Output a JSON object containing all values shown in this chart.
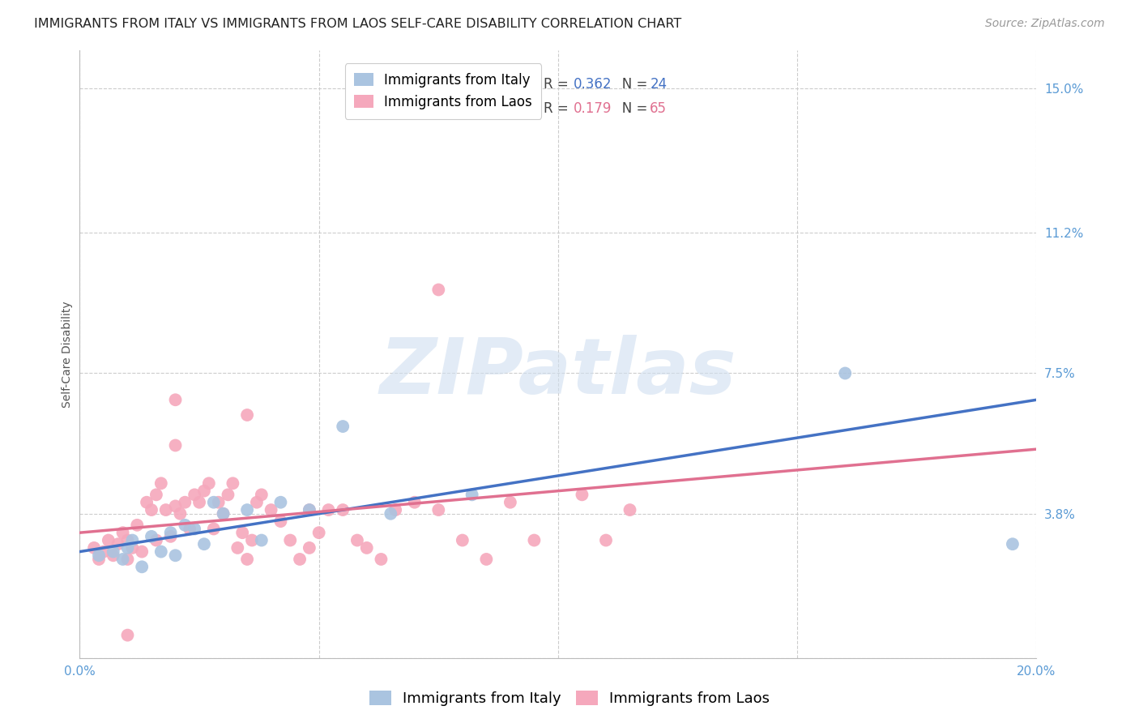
{
  "title": "IMMIGRANTS FROM ITALY VS IMMIGRANTS FROM LAOS SELF-CARE DISABILITY CORRELATION CHART",
  "source": "Source: ZipAtlas.com",
  "ylabel": "Self-Care Disability",
  "xlim": [
    0.0,
    0.2
  ],
  "ylim": [
    0.0,
    0.16
  ],
  "ytick_positions": [
    0.0,
    0.038,
    0.075,
    0.112,
    0.15
  ],
  "ytick_labels": [
    "",
    "3.8%",
    "7.5%",
    "11.2%",
    "15.0%"
  ],
  "xtick_positions": [
    0.0,
    0.05,
    0.1,
    0.15,
    0.2
  ],
  "xtick_labels": [
    "0.0%",
    "",
    "",
    "",
    "20.0%"
  ],
  "grid_color": "#cccccc",
  "background_color": "#ffffff",
  "watermark_text": "ZIPatlas",
  "italy_color": "#aac4e0",
  "italy_line_color": "#4472c4",
  "italy_R": "0.362",
  "italy_N": "24",
  "laos_color": "#f5a8bc",
  "laos_line_color": "#e07090",
  "laos_R": "0.179",
  "laos_N": "65",
  "italy_x": [
    0.004,
    0.007,
    0.009,
    0.01,
    0.011,
    0.013,
    0.015,
    0.017,
    0.019,
    0.02,
    0.022,
    0.024,
    0.026,
    0.028,
    0.03,
    0.035,
    0.038,
    0.042,
    0.048,
    0.055,
    0.065,
    0.082,
    0.16,
    0.195
  ],
  "italy_y": [
    0.027,
    0.028,
    0.026,
    0.029,
    0.031,
    0.024,
    0.032,
    0.028,
    0.033,
    0.027,
    0.035,
    0.034,
    0.03,
    0.041,
    0.038,
    0.039,
    0.031,
    0.041,
    0.039,
    0.061,
    0.038,
    0.043,
    0.075,
    0.03
  ],
  "laos_x": [
    0.003,
    0.004,
    0.005,
    0.006,
    0.007,
    0.008,
    0.009,
    0.01,
    0.01,
    0.011,
    0.012,
    0.013,
    0.014,
    0.015,
    0.016,
    0.016,
    0.017,
    0.018,
    0.019,
    0.02,
    0.02,
    0.021,
    0.022,
    0.023,
    0.024,
    0.025,
    0.026,
    0.027,
    0.028,
    0.029,
    0.03,
    0.031,
    0.032,
    0.033,
    0.034,
    0.035,
    0.036,
    0.037,
    0.038,
    0.04,
    0.042,
    0.044,
    0.046,
    0.048,
    0.05,
    0.052,
    0.055,
    0.058,
    0.06,
    0.063,
    0.066,
    0.07,
    0.075,
    0.08,
    0.085,
    0.09,
    0.095,
    0.105,
    0.11,
    0.115,
    0.02,
    0.035,
    0.048,
    0.075,
    0.01
  ],
  "laos_y": [
    0.029,
    0.026,
    0.028,
    0.031,
    0.027,
    0.03,
    0.033,
    0.026,
    0.031,
    0.029,
    0.035,
    0.028,
    0.041,
    0.039,
    0.043,
    0.031,
    0.046,
    0.039,
    0.032,
    0.056,
    0.04,
    0.038,
    0.041,
    0.034,
    0.043,
    0.041,
    0.044,
    0.046,
    0.034,
    0.041,
    0.038,
    0.043,
    0.046,
    0.029,
    0.033,
    0.026,
    0.031,
    0.041,
    0.043,
    0.039,
    0.036,
    0.031,
    0.026,
    0.029,
    0.033,
    0.039,
    0.039,
    0.031,
    0.029,
    0.026,
    0.039,
    0.041,
    0.039,
    0.031,
    0.026,
    0.041,
    0.031,
    0.043,
    0.031,
    0.039,
    0.068,
    0.064,
    0.039,
    0.097,
    0.006
  ],
  "italy_line_x0": 0.0,
  "italy_line_x1": 0.2,
  "italy_line_y0": 0.028,
  "italy_line_y1": 0.068,
  "laos_line_x0": 0.0,
  "laos_line_x1": 0.2,
  "laos_line_y0": 0.033,
  "laos_line_y1": 0.055,
  "legend_italy_label": "Immigrants from Italy",
  "legend_laos_label": "Immigrants from Laos",
  "title_fontsize": 11.5,
  "axis_label_fontsize": 10,
  "tick_fontsize": 11,
  "legend_fontsize": 12,
  "source_fontsize": 10,
  "ytick_color": "#5b9bd5",
  "xtick_color": "#5b9bd5"
}
